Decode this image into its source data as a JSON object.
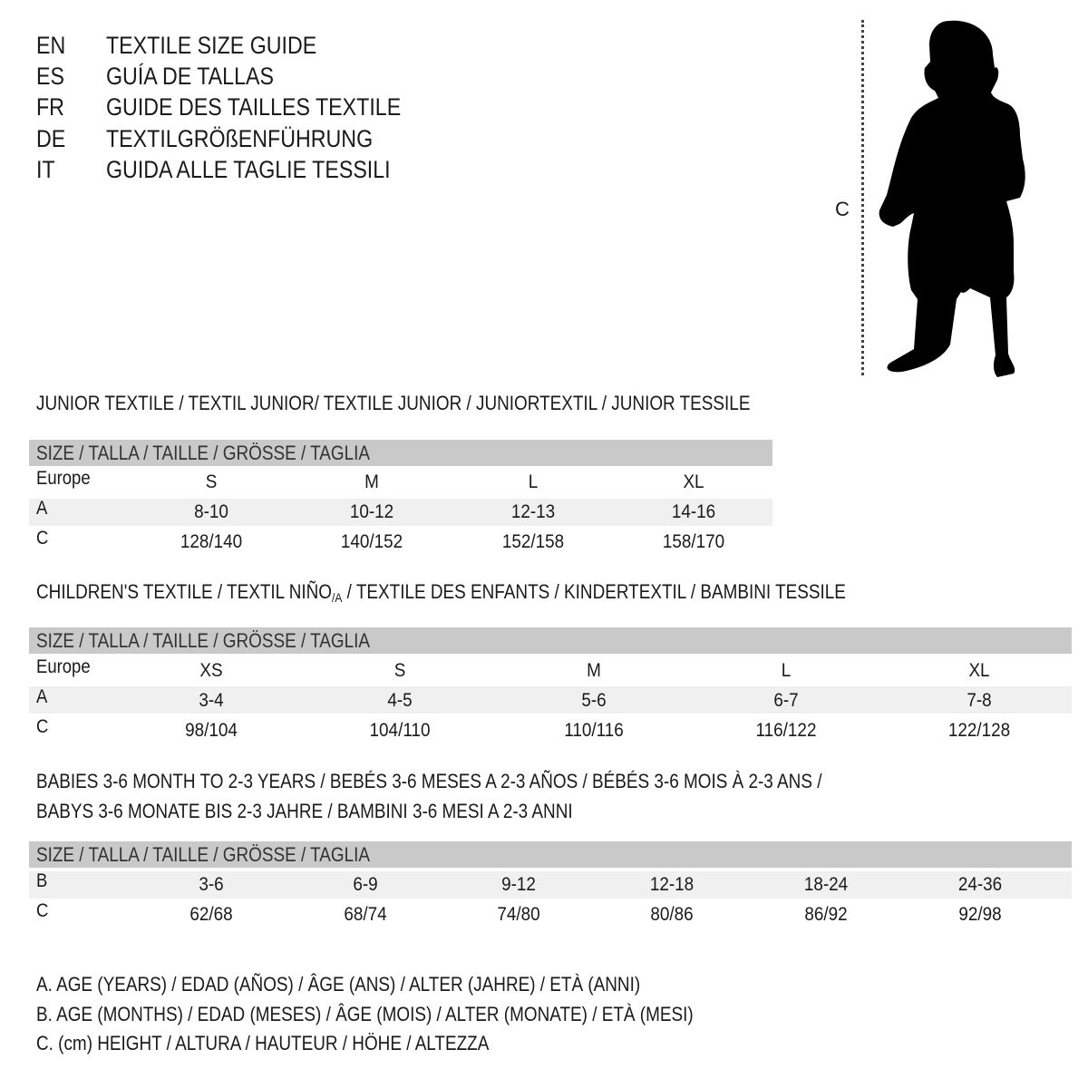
{
  "languages": [
    {
      "code": "EN",
      "title": "TEXTILE SIZE GUIDE"
    },
    {
      "code": "ES",
      "title": "GUÍA DE TALLAS"
    },
    {
      "code": "FR",
      "title": "GUIDE DES TAILLES TEXTILE"
    },
    {
      "code": "DE",
      "title": "TEXTILGRÖßENFÜHRUNG"
    },
    {
      "code": "IT",
      "title": "GUIDA ALLE TAGLIE TESSILI"
    }
  ],
  "figure": {
    "measure_label": "C",
    "icon": "child-silhouette"
  },
  "size_header": "SIZE / TALLA / TAILLE / GRÖSSE / TAGLIA",
  "junior": {
    "title": "JUNIOR TEXTILE / TEXTIL JUNIOR/ TEXTILE JUNIOR / JUNIORTEXTIL / JUNIOR TESSILE",
    "rows": [
      {
        "label": "Europe",
        "values": [
          "S",
          "M",
          "L",
          "XL"
        ]
      },
      {
        "label": "A",
        "values": [
          "8-10",
          "10-12",
          "12-13",
          "14-16"
        ]
      },
      {
        "label": "C",
        "values": [
          "128/140",
          "140/152",
          "152/158",
          "158/170"
        ]
      }
    ]
  },
  "children": {
    "title_a": "CHILDREN'S TEXTILE / TEXTIL NIÑO",
    "title_sub": "/A",
    "title_b": " / TEXTILE DES ENFANTS / KINDERTEXTIL / BAMBINI TESSILE",
    "rows": [
      {
        "label": "Europe",
        "values": [
          "XS",
          "S",
          "M",
          "L",
          "XL"
        ]
      },
      {
        "label": "A",
        "values": [
          "3-4",
          "4-5",
          "5-6",
          "6-7",
          "7-8"
        ]
      },
      {
        "label": "C",
        "values": [
          "98/104",
          "104/110",
          "110/116",
          "116/122",
          "122/128"
        ]
      }
    ]
  },
  "babies": {
    "title_line1": "BABIES 3-6 MONTH TO 2-3 YEARS / BEBÉS 3-6 MESES A 2-3 AÑOS / BÉBÉS 3-6 MOIS À 2-3 ANS /",
    "title_line2": "BABYS 3-6 MONATE BIS 2-3 JAHRE / BAMBINI 3-6 MESI A 2-3 ANNI",
    "rows": [
      {
        "label": "B",
        "values": [
          "3-6",
          "6-9",
          "9-12",
          "12-18",
          "18-24",
          "24-36"
        ]
      },
      {
        "label": "C",
        "values": [
          "62/68",
          "68/74",
          "74/80",
          "80/86",
          "86/92",
          "92/98"
        ]
      }
    ]
  },
  "legend": [
    "A. AGE (YEARS) / EDAD (AÑOS) / ÂGE (ANS) / ALTER (JAHRE) / ETÀ (ANNI)",
    "B. AGE (MONTHS) / EDAD (MESES) / ÂGE (MOIS) / ALTER (MONATE) / ETÀ (MESI)",
    "C. (cm) HEIGHT / ALTURA / HAUTEUR / HÖHE / ALTEZZA"
  ],
  "colors": {
    "header_bar": "#c9c9c9",
    "stripe": "#f0f0f0",
    "text": "#1a1a1a"
  }
}
